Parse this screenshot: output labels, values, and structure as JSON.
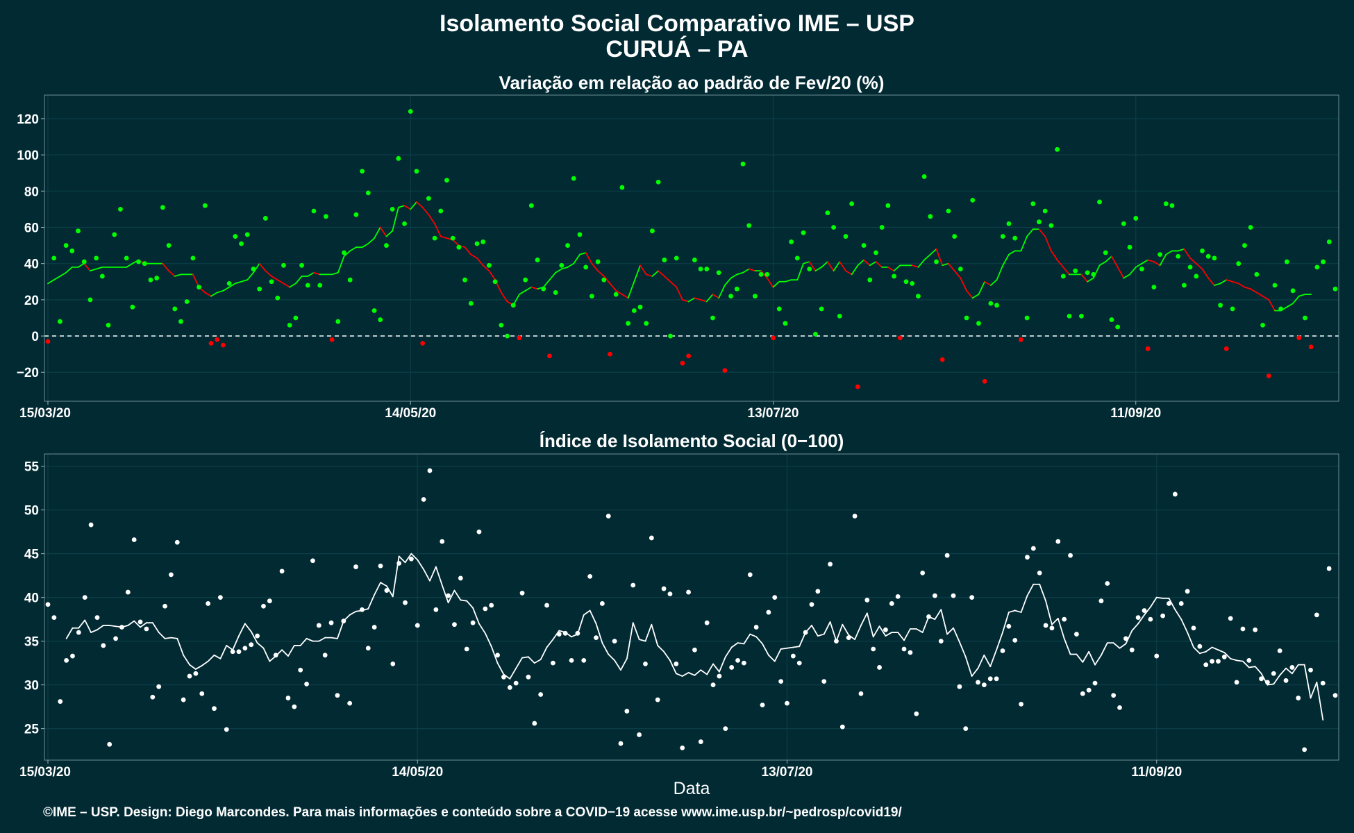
{
  "title_line1": "Isolamento Social Comparativo IME – USP",
  "title_line2": "CURUÁ – PA",
  "x_axis_label": "Data",
  "caption": "©IME – USP. Design: Diego Marcondes. Para mais informações e conteúdo sobre a COVID−19 acesse www.ime.usp.br/~pedrosp/covid19/",
  "colors": {
    "background": "#022a33",
    "positive": "#00ff00",
    "negative": "#ff0000",
    "index_series": "#ffffff",
    "zero_line": "#ffffff"
  },
  "chart_data": [
    {
      "type": "scatter",
      "title": "Variação em relação ao padrão de Fev/20 (%)",
      "xlabel": "",
      "ylabel": "",
      "x_start": "15/03/20",
      "x_end": "20/10/20",
      "x_ticks": [
        "15/03/20",
        "14/05/20",
        "13/07/20",
        "11/09/20"
      ],
      "y_ticks": [
        -20,
        0,
        20,
        40,
        60,
        80,
        100,
        120
      ],
      "ylim": [
        -36,
        133
      ],
      "reference_line": 0,
      "grid": true,
      "legend": "none",
      "series": [
        {
          "kind": "points",
          "color_rule": "green when ≥ 0, red when < 0",
          "values": [
            -3,
            43,
            8,
            50,
            47,
            58,
            41,
            20,
            43,
            33,
            6,
            56,
            70,
            43,
            16,
            41,
            40,
            31,
            32,
            71,
            50,
            15,
            8,
            19,
            43,
            27,
            72,
            -4,
            -2,
            -5,
            29,
            55,
            51,
            56,
            37,
            26,
            65,
            30,
            21,
            39,
            6,
            10,
            39,
            28,
            69,
            28,
            66,
            -2,
            8,
            46,
            31,
            67,
            91,
            79,
            14,
            9,
            50,
            70,
            98,
            62,
            124,
            91,
            -4,
            76,
            54,
            69,
            86,
            54,
            49,
            31,
            18,
            51,
            52,
            39,
            30,
            6,
            0,
            17,
            -1,
            31,
            72,
            42,
            26,
            -11,
            24,
            39,
            50,
            87,
            56,
            38,
            22,
            41,
            31,
            -10,
            23,
            82,
            7,
            14,
            16,
            7,
            58,
            85,
            42,
            0,
            43,
            -15,
            -11,
            42,
            37,
            37,
            10,
            35,
            -19,
            22,
            26,
            95,
            61,
            22,
            34,
            34,
            -1,
            15,
            7,
            52,
            43,
            57,
            37,
            1,
            15,
            68,
            60,
            11,
            55,
            73,
            -28,
            50,
            31,
            46,
            60,
            72,
            33,
            -1,
            30,
            29,
            22,
            88,
            66,
            41,
            -13,
            69,
            55,
            37,
            10,
            75,
            7,
            -25,
            18,
            17,
            55,
            62,
            54,
            -2,
            10,
            73,
            63,
            69,
            61,
            103,
            33,
            11,
            36,
            11,
            35,
            34,
            74,
            46,
            9,
            5,
            62,
            49,
            65,
            37,
            -7,
            27,
            45,
            73,
            72,
            44,
            28,
            38,
            33,
            47,
            44,
            43,
            17,
            -7,
            15,
            40,
            50,
            60,
            34,
            6,
            -22,
            28,
            15,
            41,
            25,
            -1,
            10,
            -6,
            38,
            41,
            52,
            26
          ]
        },
        {
          "kind": "line",
          "name": "",
          "start_index": 0,
          "color_rule": "green when rising, red when falling",
          "values": [
            29,
            31,
            33,
            35,
            38,
            38,
            40,
            36,
            37,
            38,
            38,
            38,
            38,
            38,
            40,
            42,
            40,
            40,
            40,
            40,
            36,
            33,
            34,
            34,
            34,
            27,
            24,
            22,
            24,
            25,
            27,
            29,
            30,
            31,
            35,
            40,
            36,
            33,
            31,
            29,
            27,
            29,
            33,
            33,
            35,
            34,
            34,
            34,
            35,
            44,
            47,
            49,
            49,
            51,
            54,
            60,
            55,
            58,
            71,
            72,
            70,
            74,
            71,
            67,
            62,
            55,
            54,
            53,
            50,
            49,
            45,
            43,
            39,
            36,
            31,
            24,
            19,
            17,
            23,
            25,
            27,
            26,
            27,
            31,
            35,
            37,
            38,
            40,
            45,
            46,
            40,
            36,
            33,
            29,
            25,
            23,
            21,
            30,
            39,
            34,
            33,
            36,
            33,
            30,
            27,
            20,
            19,
            21,
            20,
            19,
            23,
            21,
            28,
            32,
            34,
            35,
            37,
            36,
            36,
            32,
            27,
            30,
            30,
            31,
            31,
            40,
            41,
            36,
            38,
            41,
            36,
            41,
            36,
            34,
            39,
            42,
            39,
            41,
            38,
            38,
            36,
            39,
            39,
            39,
            38,
            42,
            45,
            48,
            39,
            40,
            36,
            32,
            25,
            21,
            23,
            30,
            28,
            31,
            39,
            45,
            47,
            47,
            55,
            59,
            59,
            55,
            47,
            42,
            38,
            34,
            34,
            34,
            30,
            32,
            39,
            41,
            44,
            38,
            32,
            34,
            38,
            40,
            42,
            41,
            39,
            45,
            47,
            47,
            48,
            43,
            40,
            37,
            32,
            28,
            29,
            31,
            30,
            29,
            27,
            26,
            24,
            22,
            20,
            14,
            14,
            16,
            18,
            22,
            23,
            23
          ]
        }
      ]
    },
    {
      "type": "scatter",
      "title": "Índice de Isolamento Social (0−100)",
      "xlabel": "Data",
      "ylabel": "",
      "x_start": "15/03/20",
      "x_end": "20/10/20",
      "x_ticks": [
        "15/03/20",
        "14/05/20",
        "13/07/20",
        "11/09/20"
      ],
      "y_ticks": [
        25,
        30,
        35,
        40,
        45,
        50,
        55
      ],
      "ylim": [
        21.4,
        56.4
      ],
      "grid": true,
      "legend": "none",
      "series": [
        {
          "kind": "points",
          "color": "#ffffff",
          "values": [
            39.2,
            37.7,
            28.1,
            32.8,
            33.3,
            36.0,
            40.0,
            48.3,
            37.7,
            34.5,
            23.2,
            35.3,
            36.6,
            40.6,
            46.6,
            37.2,
            36.4,
            28.6,
            29.8,
            39.0,
            42.6,
            46.3,
            28.3,
            31.0,
            31.3,
            29.0,
            39.3,
            27.3,
            40.0,
            24.9,
            33.8,
            33.8,
            34.2,
            34.6,
            35.6,
            39.0,
            39.6,
            33.4,
            43.0,
            28.5,
            27.5,
            31.7,
            30.1,
            44.2,
            36.8,
            33.4,
            37.1,
            28.8,
            37.3,
            27.9,
            43.5,
            38.6,
            34.2,
            36.6,
            43.6,
            40.8,
            32.4,
            43.9,
            39.4,
            44.4,
            36.8,
            51.2,
            54.5,
            38.6,
            46.4,
            40.2,
            36.9,
            42.2,
            34.1,
            37.1,
            47.5,
            38.7,
            39.1,
            33.4,
            30.9,
            29.7,
            30.2,
            40.5,
            30.9,
            25.6,
            28.9,
            39.1,
            32.5,
            35.8,
            35.9,
            32.8,
            35.9,
            32.8,
            42.4,
            35.4,
            39.3,
            49.3,
            35.0,
            23.3,
            27.0,
            41.4,
            24.3,
            32.4,
            46.8,
            28.3,
            41.0,
            40.4,
            32.4,
            22.8,
            40.6,
            34.0,
            23.5,
            37.1,
            30.0,
            31.0,
            25.0,
            32.0,
            32.8,
            32.5,
            42.6,
            36.6,
            27.7,
            38.3,
            40.0,
            30.4,
            27.9,
            33.3,
            32.5,
            36.0,
            39.2,
            40.7,
            30.4,
            43.8,
            35.0,
            25.2,
            35.4,
            49.3,
            29.0,
            39.7,
            34.1,
            32.0,
            36.3,
            39.3,
            40.1,
            34.1,
            33.7,
            26.7,
            42.8,
            37.8,
            40.2,
            35.0,
            44.8,
            40.2,
            29.8,
            25.0,
            40.0,
            30.3,
            30.0,
            30.7,
            30.7,
            33.9,
            36.7,
            35.1,
            27.8,
            44.6,
            45.6,
            42.8,
            36.8,
            36.5,
            46.4,
            37.5,
            44.8,
            35.8,
            29.0,
            29.4,
            30.2,
            39.6,
            41.6,
            28.8,
            27.4,
            35.3,
            34.0,
            37.7,
            38.5,
            37.5,
            33.3,
            37.9,
            39.3,
            51.8,
            39.3,
            40.7,
            36.5,
            34.4,
            32.3,
            32.7,
            32.7,
            33.2,
            37.6,
            30.3,
            36.4,
            32.8,
            36.3,
            30.7,
            30.3,
            31.3,
            33.9,
            30.5,
            32.0,
            28.5,
            22.6,
            31.7,
            38.0,
            30.2,
            43.3,
            28.8
          ]
        },
        {
          "kind": "line",
          "name": "",
          "start_index": 3,
          "color": "#ffffff",
          "values": [
            35.3,
            36.5,
            36.5,
            37.4,
            36.0,
            36.3,
            36.8,
            36.8,
            36.7,
            36.6,
            36.8,
            37.3,
            36.6,
            37.1,
            37.1,
            36.0,
            35.3,
            35.4,
            35.3,
            33.4,
            32.3,
            31.8,
            32.2,
            32.7,
            33.4,
            33.0,
            34.5,
            34.0,
            35.6,
            37.0,
            36.1,
            34.8,
            34.2,
            32.7,
            33.3,
            34.0,
            33.3,
            34.5,
            34.5,
            35.3,
            35.0,
            35.0,
            35.4,
            35.4,
            35.3,
            37.3,
            38.0,
            38.4,
            38.5,
            38.7,
            40.3,
            41.7,
            41.3,
            40.1,
            44.7,
            44.0,
            45.0,
            44.3,
            43.2,
            41.9,
            43.5,
            41.4,
            39.4,
            40.8,
            39.7,
            39.6,
            38.8,
            37.0,
            35.9,
            34.4,
            32.5,
            31.2,
            30.7,
            31.9,
            33.1,
            33.2,
            32.5,
            32.9,
            34.3,
            35.2,
            36.2,
            36.0,
            35.5,
            35.8,
            38.0,
            38.5,
            37.0,
            34.8,
            33.5,
            32.8,
            31.7,
            33.0,
            37.1,
            35.2,
            35.0,
            36.9,
            34.5,
            33.8,
            32.8,
            31.3,
            31.0,
            31.4,
            31.1,
            31.7,
            31.2,
            32.4,
            31.5,
            33.2,
            34.3,
            34.8,
            34.7,
            35.8,
            35.5,
            34.7,
            33.4,
            32.7,
            34.1,
            34.2,
            34.3,
            34.4,
            36.0,
            36.8,
            35.6,
            35.8,
            37.2,
            35.0,
            36.9,
            35.7,
            35.2,
            36.8,
            38.2,
            35.5,
            36.7,
            35.6,
            36.0,
            36.0,
            35.1,
            36.4,
            36.4,
            36.0,
            37.8,
            37.5,
            38.6,
            35.8,
            36.5,
            34.9,
            33.2,
            31.0,
            31.9,
            33.4,
            32.1,
            34.0,
            36.0,
            38.3,
            38.5,
            38.3,
            40.2,
            41.5,
            41.5,
            39.6,
            36.9,
            37.6,
            35.3,
            33.5,
            33.5,
            32.6,
            33.8,
            32.3,
            33.4,
            34.8,
            34.8,
            34.2,
            34.7,
            36.2,
            37.0,
            38.0,
            38.9,
            40.0,
            39.9,
            39.9,
            38.6,
            37.5,
            36.0,
            34.3,
            33.6,
            33.8,
            34.3,
            34.0,
            33.7,
            33.0,
            32.8,
            32.7,
            32.0,
            32.1,
            31.3,
            30.0,
            30.1,
            31.1,
            31.9,
            31.3,
            32.3,
            32.3,
            28.5,
            30.3,
            26.0
          ]
        }
      ]
    }
  ]
}
